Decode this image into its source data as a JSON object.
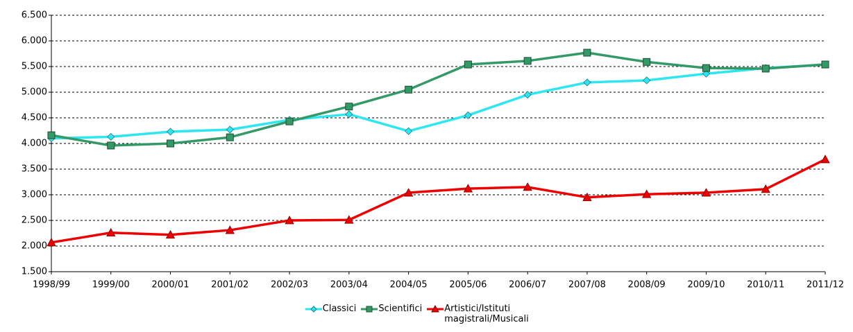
{
  "chart_data": {
    "type": "line",
    "categories": [
      "1998/99",
      "1999/00",
      "2000/01",
      "2001/02",
      "2002/03",
      "2003/04",
      "2004/05",
      "2005/06",
      "2006/07",
      "2007/08",
      "2008/09",
      "2009/10",
      "2010/11",
      "2011/12"
    ],
    "series": [
      {
        "name": "Classici",
        "color": "#2ee6ef",
        "marker": "diamond",
        "values": [
          4100,
          4130,
          4230,
          4270,
          4460,
          4570,
          4240,
          4550,
          4950,
          5190,
          5230,
          5360,
          5470,
          5540
        ]
      },
      {
        "name": "Scientifici",
        "color": "#339966",
        "marker": "square",
        "values": [
          4160,
          3960,
          4000,
          4120,
          4430,
          4720,
          5050,
          5540,
          5610,
          5770,
          5590,
          5470,
          5460,
          5540
        ]
      },
      {
        "name": "Artistici/Istituti magistrali/Musicali",
        "color": "#ee0000",
        "marker": "triangle",
        "values": [
          2070,
          2260,
          2220,
          2310,
          2500,
          2510,
          3040,
          3120,
          3150,
          2950,
          3010,
          3040,
          3110,
          3690
        ]
      }
    ],
    "ylim": [
      1500,
      6500
    ],
    "yticks": [
      {
        "value": 1500,
        "label": "1.500"
      },
      {
        "value": 2000,
        "label": "2.000"
      },
      {
        "value": 2500,
        "label": "2.500"
      },
      {
        "value": 3000,
        "label": "3.000"
      },
      {
        "value": 3500,
        "label": "3.500"
      },
      {
        "value": 4000,
        "label": "4.000"
      },
      {
        "value": 4500,
        "label": "4.500"
      },
      {
        "value": 5000,
        "label": "5.000"
      },
      {
        "value": 5500,
        "label": "5.500"
      },
      {
        "value": 6000,
        "label": "6.000"
      },
      {
        "value": 6500,
        "label": "6.500"
      }
    ],
    "grid": true,
    "legend": "bottom"
  }
}
